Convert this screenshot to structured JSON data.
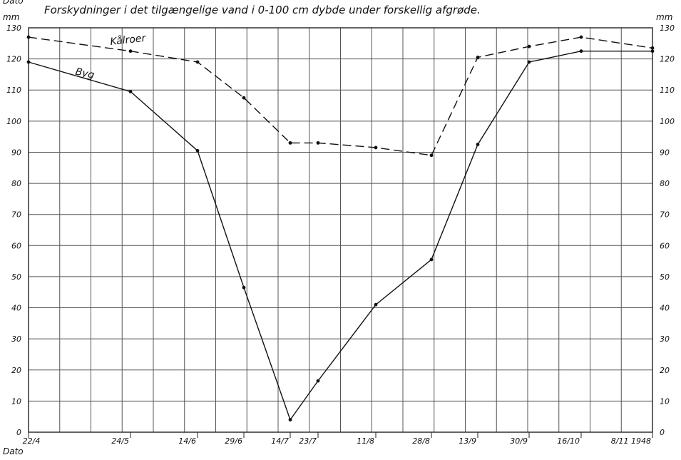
{
  "title": "Forskydninger i det tilgængelige vand i 0-100 cm dybde under forskellig afgrøde.",
  "unit_left": "mm",
  "unit_right": "mm",
  "dato_top": "Dato",
  "dato_bottom": "Dato",
  "chart_data": {
    "type": "line",
    "title": "Forskydninger i det tilgængelige vand i 0-100 cm dybde under forskellig afgrøde.",
    "ylabel": "mm",
    "xlabel": "Dato",
    "ylim": [
      0,
      130
    ],
    "yticks": [
      0,
      10,
      20,
      30,
      40,
      50,
      60,
      70,
      80,
      90,
      100,
      110,
      120,
      130
    ],
    "xlim_days": [
      142,
      312
    ],
    "xticks": [
      {
        "label": "22/4",
        "day": 142
      },
      {
        "label": "24/5",
        "day": 174
      },
      {
        "label": "14/6",
        "day": 195
      },
      {
        "label": "29/6",
        "day": 210
      },
      {
        "label": "14/7",
        "day": 225
      },
      {
        "label": "23/7",
        "day": 234
      },
      {
        "label": "11/8",
        "day": 253
      },
      {
        "label": "28/8",
        "day": 270
      },
      {
        "label": "13/9",
        "day": 286
      },
      {
        "label": "30/9",
        "day": 303
      },
      {
        "label": "16/10",
        "day": 319
      },
      {
        "label": "8/11 1948",
        "day": 342
      }
    ],
    "grid": true,
    "series": [
      {
        "name": "Kålroer",
        "style": "dashed",
        "points": [
          {
            "day": 142,
            "y": 127
          },
          {
            "day": 174,
            "y": 122.5
          },
          {
            "day": 195,
            "y": 119
          },
          {
            "day": 210,
            "y": 107.5
          },
          {
            "day": 225,
            "y": 93
          },
          {
            "day": 234,
            "y": 93
          },
          {
            "day": 253,
            "y": 91.5
          },
          {
            "day": 270,
            "y": 89
          },
          {
            "day": 286,
            "y": 120.5
          },
          {
            "day": 303,
            "y": 124
          },
          {
            "day": 319,
            "y": 127
          },
          {
            "day": 342,
            "y": 123.5
          }
        ]
      },
      {
        "name": "Byg",
        "style": "solid",
        "points": [
          {
            "day": 142,
            "y": 119
          },
          {
            "day": 174,
            "y": 109.5
          },
          {
            "day": 195,
            "y": 90.5
          },
          {
            "day": 210,
            "y": 46.5
          },
          {
            "day": 225,
            "y": 4
          },
          {
            "day": 234,
            "y": 16.5
          },
          {
            "day": 253,
            "y": 41
          },
          {
            "day": 270,
            "y": 55.5
          },
          {
            "day": 286,
            "y": 92.5
          },
          {
            "day": 303,
            "y": 119
          },
          {
            "day": 319,
            "y": 122.5
          },
          {
            "day": 342,
            "y": 122.5
          }
        ]
      }
    ]
  }
}
